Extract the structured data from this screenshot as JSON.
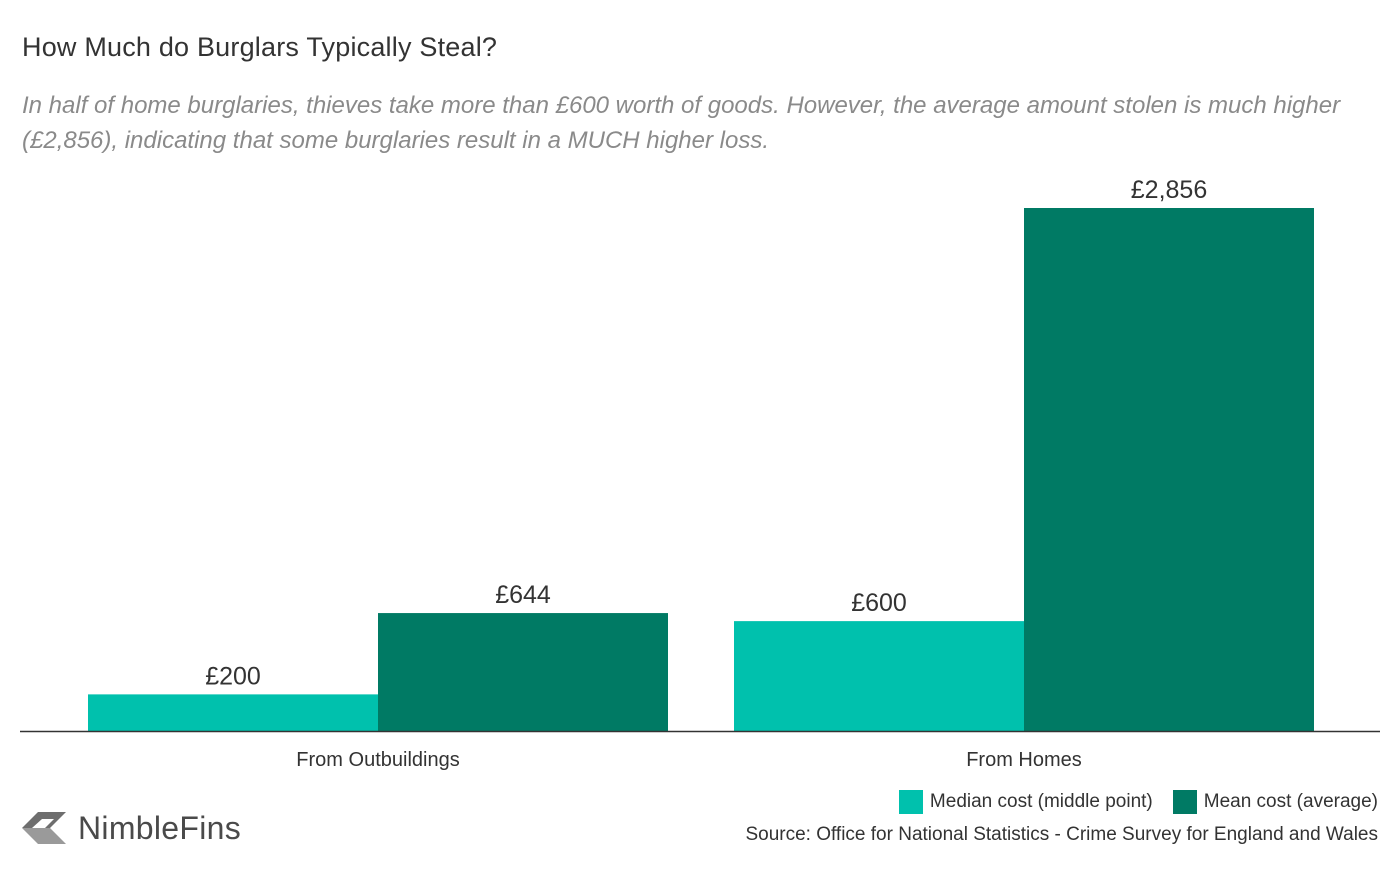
{
  "header": {
    "title": "How Much do Burglars Typically Steal?",
    "subtitle": "In half of home burglaries, thieves take more than £600 worth of goods. However, the average amount stolen is much higher (£2,856), indicating that some burglaries result in a MUCH higher loss."
  },
  "chart_data": {
    "type": "bar",
    "categories": [
      "From Outbuildings",
      "From Homes"
    ],
    "series": [
      {
        "name": "Median cost (middle point)",
        "values": [
          200,
          600
        ],
        "labels": [
          "£200",
          "£600"
        ],
        "color": "#00c1ad"
      },
      {
        "name": "Mean cost (average)",
        "values": [
          644,
          2856
        ],
        "labels": [
          "£644",
          "£2,856"
        ],
        "color": "#007a64"
      }
    ],
    "ylim": [
      0,
      2856
    ],
    "grid": false,
    "legend_position": "bottom-right"
  },
  "footer": {
    "source": "Source: Office for National Statistics - Crime Survey for England and Wales",
    "logo_text": "NimbleFins"
  }
}
